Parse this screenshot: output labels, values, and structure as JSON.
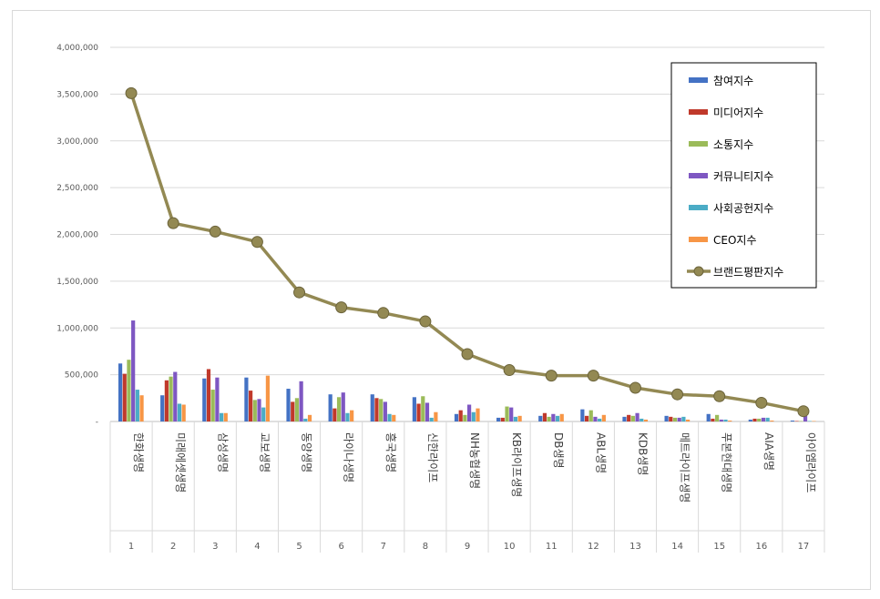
{
  "chart_data": {
    "type": "bar",
    "title": "",
    "xlabel": "",
    "ylabel": "",
    "ylim": [
      0,
      4000000
    ],
    "yticks": [
      "-",
      "500,000",
      "1,000,000",
      "1,500,000",
      "2,000,000",
      "2,500,000",
      "3,000,000",
      "3,500,000",
      "4,000,000"
    ],
    "grid": true,
    "legend_position": "top-right",
    "categories": [
      "한화생명",
      "미래에셋생명",
      "삼성생명",
      "교보생명",
      "동양생명",
      "라이나생명",
      "흥국생명",
      "신한라이프",
      "NH농협생명",
      "KB라이프생명",
      "DB생명",
      "ABL생명",
      "KDB생명",
      "메트라이프생명",
      "푸본현대생명",
      "AIA생명",
      "아이엠라이프"
    ],
    "ranks": [
      "1",
      "2",
      "3",
      "4",
      "5",
      "6",
      "7",
      "8",
      "9",
      "10",
      "11",
      "12",
      "13",
      "14",
      "15",
      "16",
      "17"
    ],
    "series": [
      {
        "name": "참여지수",
        "type": "bar",
        "color": "#4472c4",
        "values": [
          620000,
          280000,
          460000,
          470000,
          350000,
          290000,
          290000,
          260000,
          80000,
          40000,
          60000,
          130000,
          50000,
          60000,
          80000,
          20000,
          10000
        ]
      },
      {
        "name": "미디어지수",
        "type": "bar",
        "color": "#c0392b",
        "values": [
          510000,
          440000,
          560000,
          330000,
          210000,
          140000,
          250000,
          190000,
          120000,
          40000,
          90000,
          60000,
          70000,
          50000,
          30000,
          30000,
          5000
        ]
      },
      {
        "name": "소통지수",
        "type": "bar",
        "color": "#9bbb59",
        "values": [
          660000,
          480000,
          340000,
          230000,
          250000,
          260000,
          240000,
          270000,
          70000,
          160000,
          50000,
          120000,
          60000,
          40000,
          70000,
          30000,
          5000
        ]
      },
      {
        "name": "커뮤니티지수",
        "type": "bar",
        "color": "#7e57c2",
        "values": [
          1080000,
          530000,
          470000,
          240000,
          430000,
          310000,
          210000,
          200000,
          180000,
          150000,
          80000,
          50000,
          90000,
          40000,
          20000,
          40000,
          60000
        ]
      },
      {
        "name": "사회공헌지수",
        "type": "bar",
        "color": "#4bacc6",
        "values": [
          340000,
          190000,
          90000,
          150000,
          30000,
          90000,
          80000,
          40000,
          100000,
          50000,
          60000,
          30000,
          30000,
          50000,
          20000,
          40000,
          5000
        ]
      },
      {
        "name": "CEO지수",
        "type": "bar",
        "color": "#f79646",
        "values": [
          280000,
          180000,
          90000,
          490000,
          70000,
          120000,
          70000,
          100000,
          140000,
          60000,
          80000,
          70000,
          20000,
          20000,
          10000,
          10000,
          5000
        ]
      },
      {
        "name": "브랜드평판지수",
        "type": "line",
        "color": "#938953",
        "values": [
          3510000,
          2120000,
          2030000,
          1920000,
          1380000,
          1220000,
          1160000,
          1070000,
          720000,
          550000,
          490000,
          490000,
          360000,
          290000,
          270000,
          200000,
          110000
        ]
      }
    ]
  }
}
